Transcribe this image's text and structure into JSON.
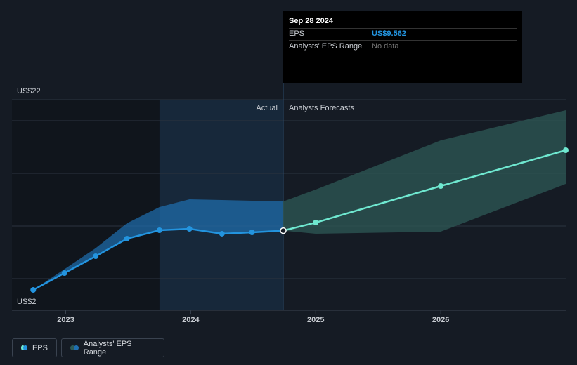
{
  "chart_data": {
    "type": "line",
    "xlim": [
      2022.57,
      2027.0
    ],
    "xticks": [
      2023,
      2024,
      2025,
      2026
    ],
    "ylim": [
      2,
      22
    ],
    "yticks": [
      {
        "value": 2,
        "label": "US$2"
      },
      {
        "value": 5,
        "label": null
      },
      {
        "value": 10,
        "label": null
      },
      {
        "value": 15,
        "label": null
      },
      {
        "value": 20,
        "label": null
      },
      {
        "value": 22,
        "label": "US$22"
      }
    ],
    "grid": true,
    "highlight_start": 2023.75,
    "divider_x": 2024.74,
    "actual_label": "Actual",
    "forecast_label": "Analysts Forecasts",
    "series": [
      {
        "name": "EPS",
        "color": "#2394df",
        "forecast_color": "#6fe8d0",
        "x": [
          2022.74,
          2022.99,
          2023.24,
          2023.49,
          2023.75,
          2023.99,
          2024.25,
          2024.49,
          2024.74,
          2025.0,
          2026.0,
          2027.0
        ],
        "values": [
          3.93,
          5.53,
          7.13,
          8.8,
          9.6,
          9.73,
          9.27,
          9.4,
          9.562,
          10.33,
          13.8,
          17.2
        ]
      },
      {
        "name": "Analysts' EPS Range",
        "color": "#1f6fb0",
        "forecast_color": "#2e5a55",
        "x": [
          2022.74,
          2022.99,
          2023.24,
          2023.49,
          2023.75,
          2023.99,
          2024.25,
          2024.49,
          2024.74,
          2025.0,
          2026.0,
          2027.0
        ],
        "high": [
          3.93,
          5.9,
          7.9,
          10.27,
          11.8,
          12.53,
          12.47,
          12.4,
          12.33,
          13.47,
          18.13,
          21.0
        ],
        "low": [
          3.93,
          5.53,
          7.13,
          8.8,
          9.6,
          9.73,
          9.27,
          9.4,
          9.562,
          9.27,
          9.47,
          14.0
        ]
      }
    ],
    "tooltip": {
      "date": "Sep 28 2024",
      "eps_label": "EPS",
      "eps_value": "US$9.562",
      "range_label": "Analysts' EPS Range",
      "range_value": "No data"
    }
  }
}
